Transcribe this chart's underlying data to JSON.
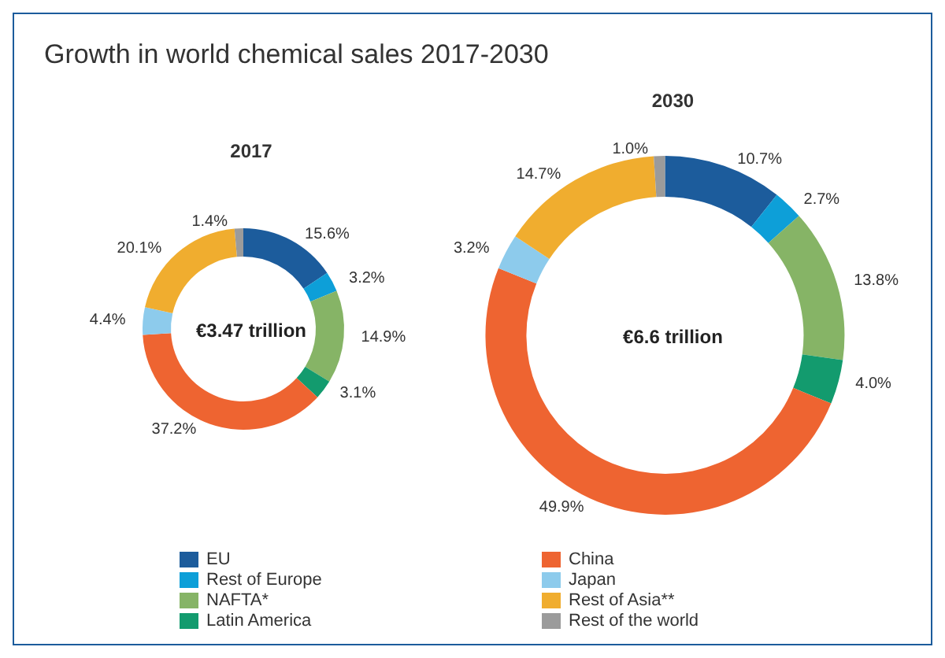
{
  "chart_data": {
    "type": "donut",
    "title": "Growth in world chemical sales 2017-2030",
    "categories": [
      "EU",
      "Rest of Europe",
      "NAFTA*",
      "Latin America",
      "China",
      "Japan",
      "Rest of Asia**",
      "Rest of the world"
    ],
    "colors": [
      "#1c5c9c",
      "#0d9fd8",
      "#86b466",
      "#139b6e",
      "#ee6431",
      "#8dcbec",
      "#f0ad2f",
      "#9b9b9b"
    ],
    "series": [
      {
        "name": "2017",
        "values": [
          15.6,
          3.2,
          14.9,
          3.1,
          37.2,
          4.4,
          20.1,
          1.4
        ],
        "value_labels": [
          "15.6%",
          "3.2%",
          "14.9%",
          "3.1%",
          "37.2%",
          "4.4%",
          "20.1%",
          "1.4%"
        ]
      },
      {
        "name": "2030",
        "values": [
          10.7,
          2.7,
          13.8,
          4.0,
          49.9,
          3.2,
          14.7,
          1.0
        ],
        "value_labels": [
          "10.7%",
          "2.7%",
          "13.8%",
          "4.0%",
          "49.9%",
          "3.2%",
          "14.7%",
          "1.0%"
        ]
      }
    ],
    "annotations": [
      "€3.47 trillion",
      "€6.6 trillion"
    ],
    "legend": "bottom"
  }
}
